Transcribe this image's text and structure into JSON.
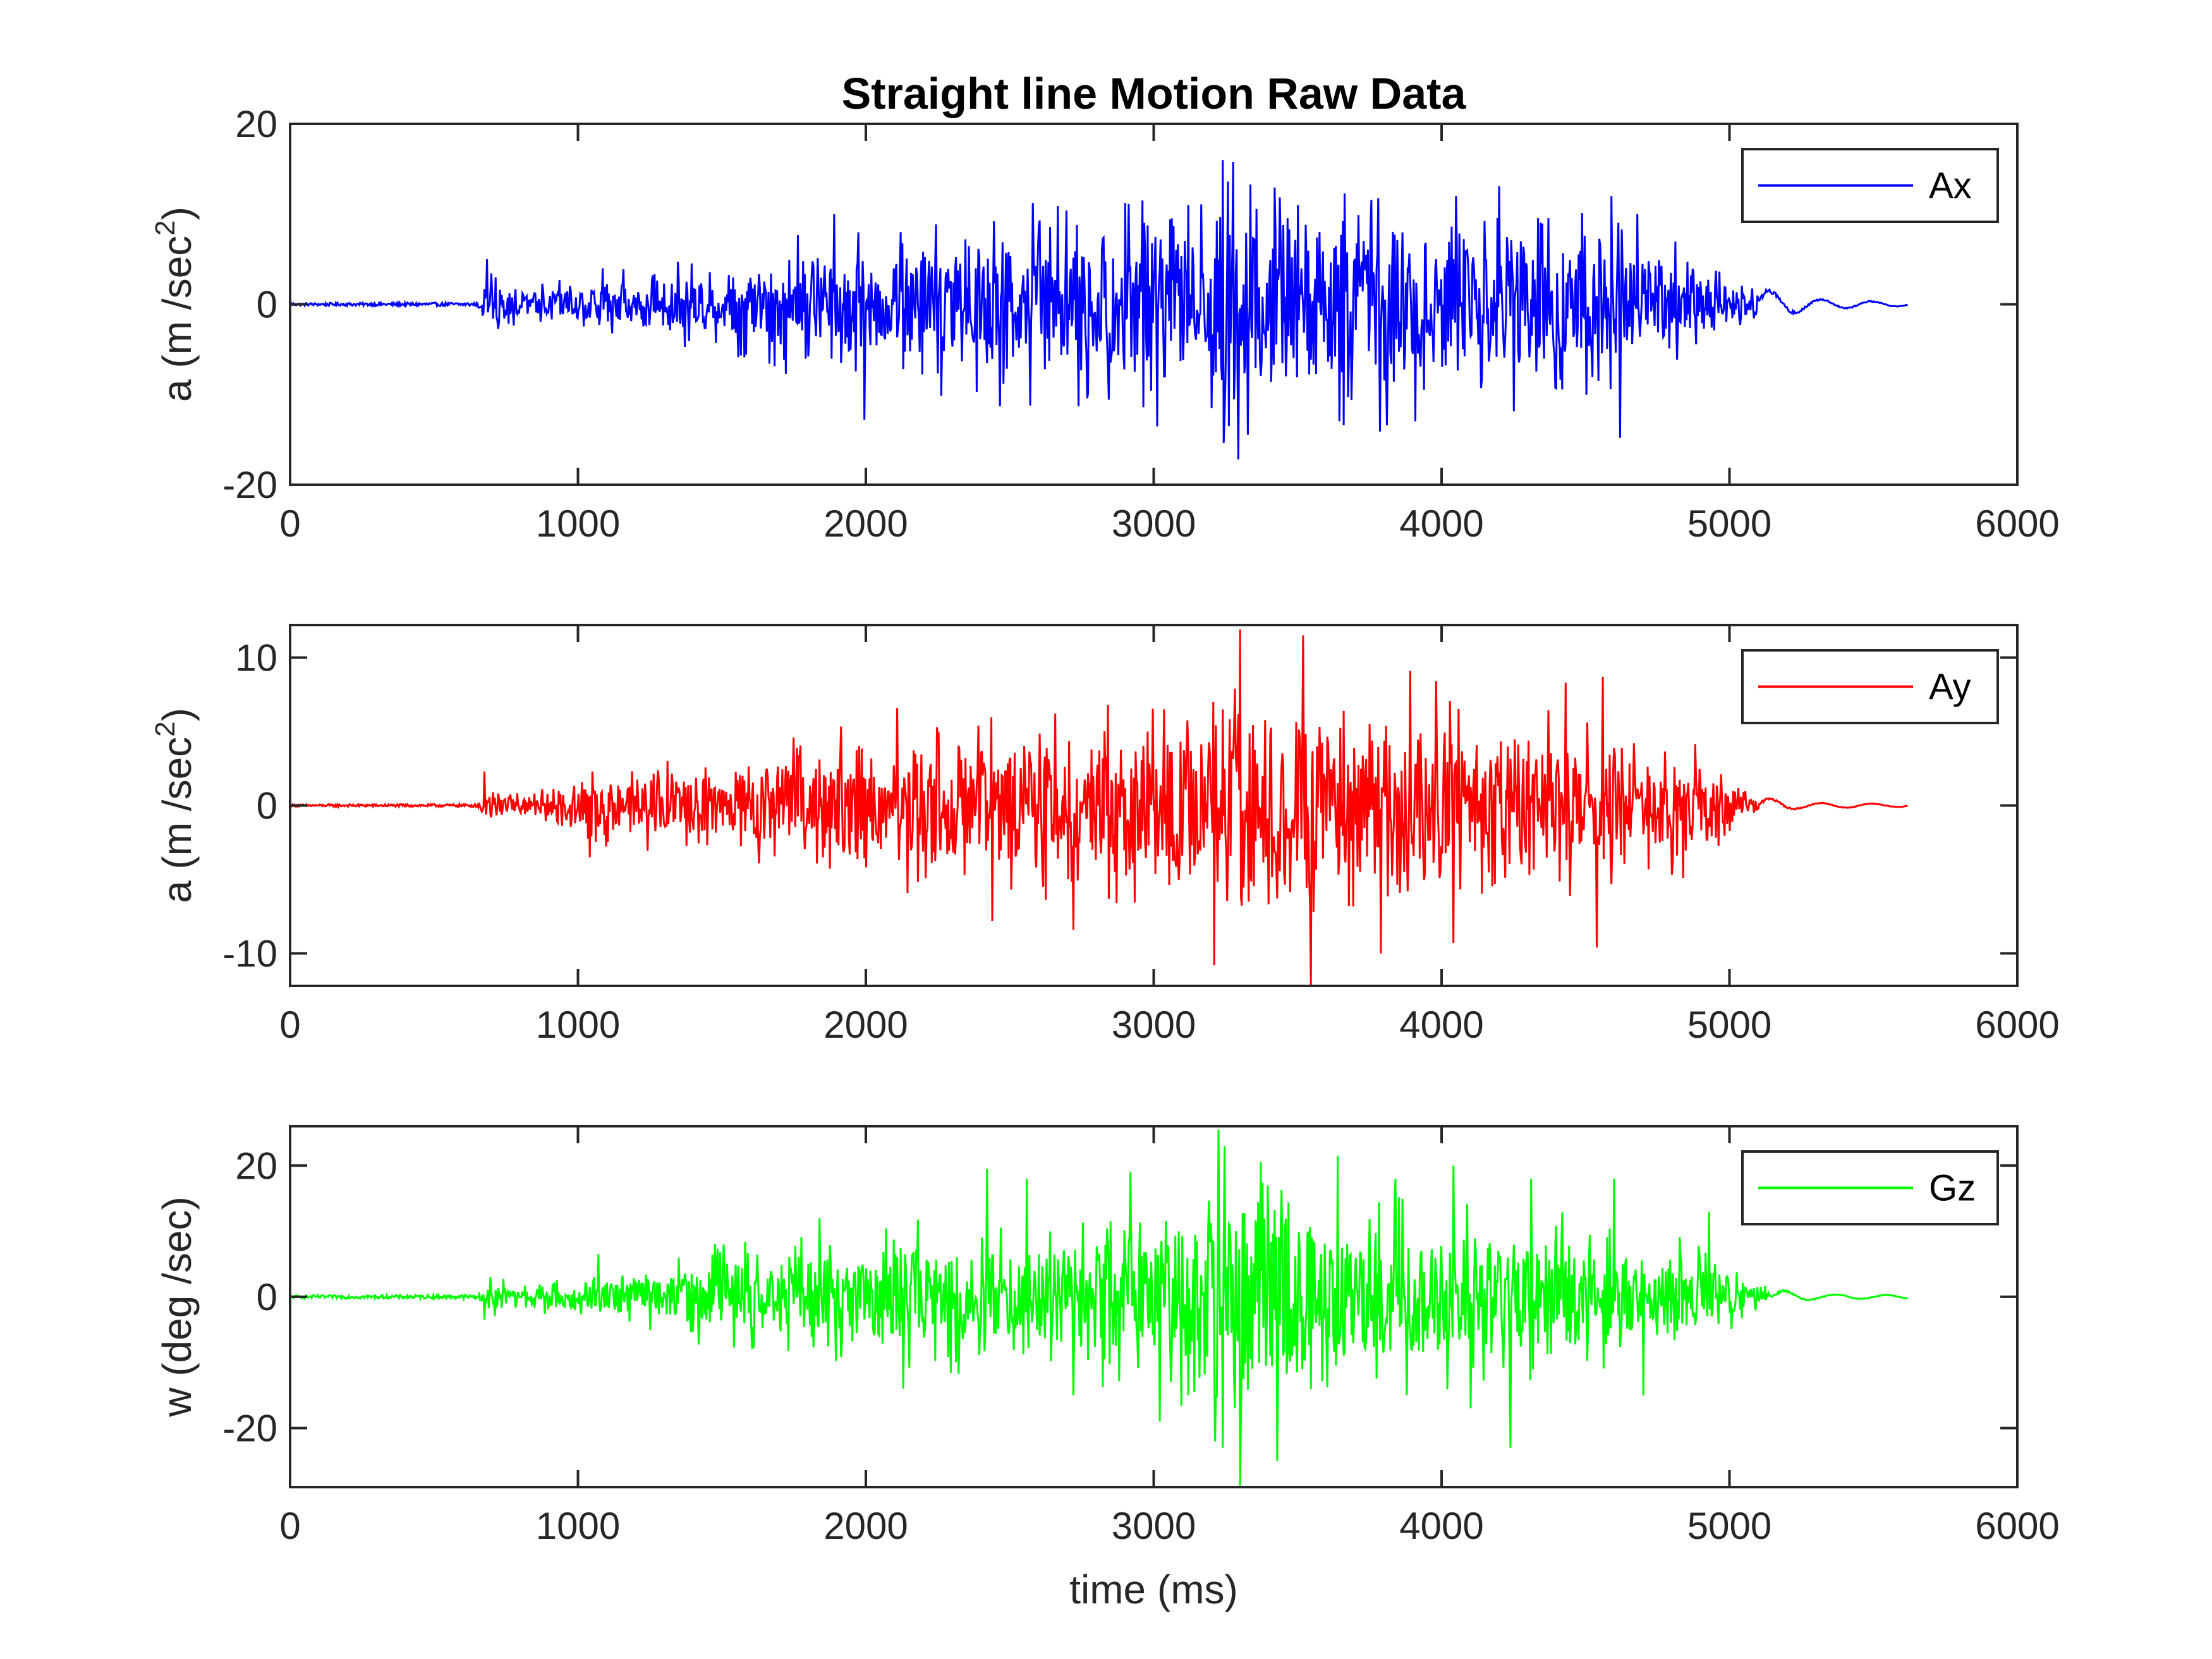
{
  "chart_data": [
    {
      "type": "line",
      "title": "Straight line Motion Raw Data",
      "xlabel": "",
      "ylabel": "a (m /sec",
      "ylabel_superscript": "2",
      "ylabel_suffix": ")",
      "xlim": [
        0,
        6000
      ],
      "ylim": [
        -20,
        20
      ],
      "xticks": [
        0,
        1000,
        2000,
        3000,
        4000,
        5000,
        6000
      ],
      "yticks": [
        -20,
        0,
        20
      ],
      "legend_position": "top-right",
      "grid": false,
      "series": [
        {
          "name": "Ax",
          "color": "#0000ff",
          "signal": {
            "x_start": 0,
            "x_end": 5620,
            "onset": 660,
            "offset": 5100,
            "envelope": [
              [
                0,
                0.15
              ],
              [
                650,
                0.2
              ],
              [
                700,
                3.5
              ],
              [
                800,
                2
              ],
              [
                1000,
                3
              ],
              [
                1300,
                4
              ],
              [
                1600,
                6
              ],
              [
                1800,
                8
              ],
              [
                2000,
                8
              ],
              [
                2200,
                9
              ],
              [
                2500,
                11
              ],
              [
                2700,
                10
              ],
              [
                2900,
                12
              ],
              [
                3000,
                13
              ],
              [
                3200,
                14
              ],
              [
                3280,
                17
              ],
              [
                3400,
                13
              ],
              [
                3600,
                12
              ],
              [
                3800,
                13
              ],
              [
                4000,
                12
              ],
              [
                4200,
                11
              ],
              [
                4400,
                11
              ],
              [
                4600,
                12
              ],
              [
                4700,
                9
              ],
              [
                4900,
                5
              ],
              [
                5050,
                3
              ],
              [
                5150,
                1.5
              ],
              [
                5300,
                0.6
              ],
              [
                5620,
                0.2
              ]
            ],
            "peaks": [
              [
                683,
                5
              ],
              [
                1085,
                4
              ],
              [
                1890,
                10
              ],
              [
                1995,
                -12.8
              ],
              [
                2120,
                8
              ],
              [
                2385,
                -9.7
              ],
              [
                2445,
                9.2
              ],
              [
                2465,
                -11.3
              ],
              [
                2600,
                8.8
              ],
              [
                2740,
                -11.3
              ],
              [
                2960,
                11.5
              ],
              [
                2990,
                -9.6
              ],
              [
                3120,
                11
              ],
              [
                3200,
                -11.5
              ],
              [
                3260,
                -13.5
              ],
              [
                3275,
                15.8
              ],
              [
                3295,
                -17.2
              ],
              [
                3500,
                11
              ],
              [
                3660,
                -13.4
              ],
              [
                3810,
                -13.4
              ],
              [
                4050,
                12
              ],
              [
                4200,
                13.1
              ],
              [
                4590,
                12
              ],
              [
                4620,
                -14.8
              ],
              [
                4680,
                10
              ]
            ]
          }
        }
      ]
    },
    {
      "type": "line",
      "title": "",
      "xlabel": "",
      "ylabel": "a (m /sec",
      "ylabel_superscript": "2",
      "ylabel_suffix": ")",
      "xlim": [
        0,
        6000
      ],
      "ylim": [
        -12.2,
        12.2
      ],
      "xticks": [
        0,
        1000,
        2000,
        3000,
        4000,
        5000,
        6000
      ],
      "yticks": [
        -10,
        0,
        10
      ],
      "legend_position": "top-right",
      "grid": false,
      "series": [
        {
          "name": "Ay",
          "color": "#ff0000",
          "signal": {
            "x_start": 0,
            "x_end": 5620,
            "onset": 660,
            "offset": 5100,
            "envelope": [
              [
                0,
                0.08
              ],
              [
                650,
                0.1
              ],
              [
                690,
                2.2
              ],
              [
                750,
                0.9
              ],
              [
                900,
                1.2
              ],
              [
                1000,
                2.5
              ],
              [
                1300,
                3
              ],
              [
                1600,
                3.5
              ],
              [
                1800,
                4.5
              ],
              [
                2100,
                5.5
              ],
              [
                2400,
                5.5
              ],
              [
                2700,
                6.2
              ],
              [
                3000,
                6.5
              ],
              [
                3200,
                7.5
              ],
              [
                3300,
                9.5
              ],
              [
                3500,
                9.5
              ],
              [
                3700,
                7.5
              ],
              [
                4000,
                7
              ],
              [
                4300,
                6.2
              ],
              [
                4600,
                5.5
              ],
              [
                4850,
                4.5
              ],
              [
                5000,
                2.2
              ],
              [
                5100,
                0.6
              ],
              [
                5250,
                0.2
              ],
              [
                5620,
                0.1
              ]
            ],
            "peaks": [
              [
                676,
                2.3
              ],
              [
                1040,
                -3.5
              ],
              [
                2110,
                6.6
              ],
              [
                2390,
                5.4
              ],
              [
                2440,
                -7.8
              ],
              [
                2720,
                -8.4
              ],
              [
                2980,
                5
              ],
              [
                3210,
                -10.8
              ],
              [
                3240,
                6.5
              ],
              [
                3300,
                11.9
              ],
              [
                3330,
                -6.5
              ],
              [
                3520,
                11.5
              ],
              [
                3545,
                -12.2
              ],
              [
                3750,
                5.5
              ],
              [
                3790,
                -10
              ],
              [
                3890,
                9.1
              ],
              [
                3980,
                8.4
              ],
              [
                4040,
                -9.3
              ],
              [
                4430,
                8.3
              ],
              [
                4540,
                -9.6
              ],
              [
                4560,
                8.7
              ]
            ]
          }
        }
      ]
    },
    {
      "type": "line",
      "title": "",
      "xlabel": "time (ms)",
      "ylabel": "w (deg /sec)",
      "ylabel_superscript": "",
      "ylabel_suffix": "",
      "xlim": [
        0,
        6000
      ],
      "ylim": [
        -29,
        26
      ],
      "xticks": [
        0,
        1000,
        2000,
        3000,
        4000,
        5000,
        6000
      ],
      "yticks": [
        -20,
        0,
        20
      ],
      "legend_position": "top-right",
      "grid": false,
      "series": [
        {
          "name": "Gz",
          "color": "#00ff00",
          "signal": {
            "x_start": 0,
            "x_end": 5620,
            "onset": 660,
            "offset": 5150,
            "envelope": [
              [
                0,
                0.25
              ],
              [
                650,
                0.3
              ],
              [
                690,
                3
              ],
              [
                800,
                2
              ],
              [
                1000,
                3.5
              ],
              [
                1300,
                5
              ],
              [
                1500,
                8
              ],
              [
                1800,
                9
              ],
              [
                2000,
                10
              ],
              [
                2200,
                11
              ],
              [
                2500,
                11
              ],
              [
                2700,
                12
              ],
              [
                2900,
                13
              ],
              [
                3100,
                16
              ],
              [
                3220,
                22
              ],
              [
                3300,
                20
              ],
              [
                3500,
                17
              ],
              [
                3700,
                15
              ],
              [
                4000,
                13
              ],
              [
                4300,
                13
              ],
              [
                4600,
                10
              ],
              [
                4800,
                9
              ],
              [
                4950,
                7
              ],
              [
                5050,
                3
              ],
              [
                5150,
                1.2
              ],
              [
                5300,
                0.4
              ],
              [
                5620,
                0.3
              ]
            ],
            "peaks": [
              [
                676,
                -3.5
              ],
              [
                1070,
                6.5
              ],
              [
                1840,
                12
              ],
              [
                2130,
                -14
              ],
              [
                2420,
                19.5
              ],
              [
                2560,
                18
              ],
              [
                2720,
                -15
              ],
              [
                2920,
                19
              ],
              [
                3020,
                -19
              ],
              [
                3225,
                25.5
              ],
              [
                3240,
                -23
              ],
              [
                3300,
                -29
              ],
              [
                3395,
                17
              ],
              [
                3430,
                -25
              ],
              [
                3640,
                21.5
              ],
              [
                3840,
                18
              ],
              [
                4040,
                20
              ],
              [
                4100,
                -17
              ],
              [
                4240,
                -23
              ],
              [
                4310,
                18
              ],
              [
                4600,
                18
              ],
              [
                4700,
                -15
              ],
              [
                4930,
                13
              ]
            ]
          }
        }
      ]
    }
  ]
}
